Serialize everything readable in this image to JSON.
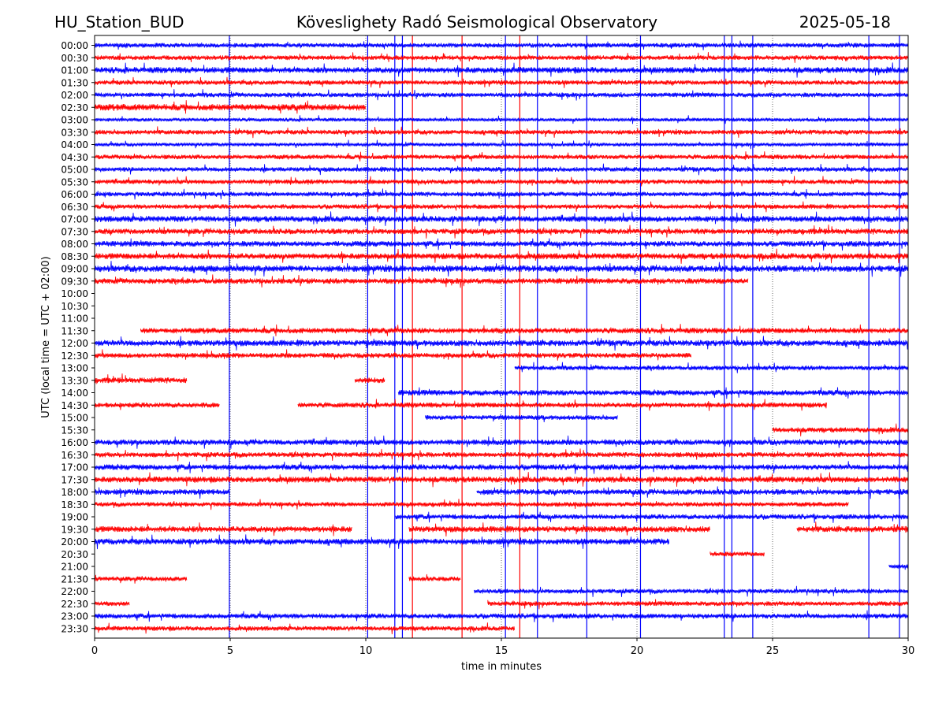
{
  "header": {
    "station": "HU_Station_BUD",
    "title": "Köveslighety Radó Seismological Observatory",
    "date": "2025-05-18"
  },
  "chart_data": {
    "type": "line",
    "subtype": "helicorder",
    "xlabel": "time in minutes",
    "ylabel": "UTC (local time = UTC + 02:00)",
    "xlim": [
      0,
      30
    ],
    "xticks": [
      0,
      5,
      10,
      15,
      20,
      25,
      30
    ],
    "vertical_dotted_gridlines_at_minutes": [
      5,
      10,
      15,
      20,
      25
    ],
    "colors": {
      "blue": "#0000ff",
      "red": "#ff0000"
    },
    "rows": [
      {
        "label": "00:00",
        "color": "blue",
        "segments": [
          [
            0,
            30
          ]
        ],
        "noise": 1.0
      },
      {
        "label": "00:30",
        "color": "red",
        "segments": [
          [
            0,
            30
          ]
        ],
        "noise": 1.0
      },
      {
        "label": "01:00",
        "color": "blue",
        "segments": [
          [
            0,
            30
          ]
        ],
        "noise": 1.3
      },
      {
        "label": "01:30",
        "color": "red",
        "segments": [
          [
            0,
            30
          ]
        ],
        "noise": 1.0
      },
      {
        "label": "02:00",
        "color": "blue",
        "segments": [
          [
            0,
            30
          ]
        ],
        "noise": 1.0
      },
      {
        "label": "02:30",
        "color": "red",
        "segments": [
          [
            0,
            10
          ]
        ],
        "noise": 1.4
      },
      {
        "label": "03:00",
        "color": "blue",
        "segments": [
          [
            0,
            30
          ]
        ],
        "noise": 0.8
      },
      {
        "label": "03:30",
        "color": "red",
        "segments": [
          [
            0,
            30
          ]
        ],
        "noise": 1.0
      },
      {
        "label": "04:00",
        "color": "blue",
        "segments": [
          [
            0,
            30
          ]
        ],
        "noise": 0.8
      },
      {
        "label": "04:30",
        "color": "red",
        "segments": [
          [
            0,
            30
          ]
        ],
        "noise": 1.0
      },
      {
        "label": "05:00",
        "color": "blue",
        "segments": [
          [
            0,
            30
          ]
        ],
        "noise": 1.0
      },
      {
        "label": "05:30",
        "color": "red",
        "segments": [
          [
            0,
            30
          ]
        ],
        "noise": 1.0
      },
      {
        "label": "06:00",
        "color": "blue",
        "segments": [
          [
            0,
            30
          ]
        ],
        "noise": 1.0
      },
      {
        "label": "06:30",
        "color": "red",
        "segments": [
          [
            0,
            30
          ]
        ],
        "noise": 1.0
      },
      {
        "label": "07:00",
        "color": "blue",
        "segments": [
          [
            0,
            30
          ]
        ],
        "noise": 1.3
      },
      {
        "label": "07:30",
        "color": "red",
        "segments": [
          [
            0,
            30
          ]
        ],
        "noise": 1.2
      },
      {
        "label": "08:00",
        "color": "blue",
        "segments": [
          [
            0,
            30
          ]
        ],
        "noise": 1.2
      },
      {
        "label": "08:30",
        "color": "red",
        "segments": [
          [
            0,
            30
          ]
        ],
        "noise": 1.3
      },
      {
        "label": "09:00",
        "color": "blue",
        "segments": [
          [
            0,
            30
          ]
        ],
        "noise": 1.4
      },
      {
        "label": "09:30",
        "color": "red",
        "segments": [
          [
            0,
            24.1
          ]
        ],
        "noise": 1.2
      },
      {
        "label": "10:00",
        "color": "blue",
        "segments": [],
        "noise": 0
      },
      {
        "label": "10:30",
        "color": "red",
        "segments": [],
        "noise": 0
      },
      {
        "label": "11:00",
        "color": "blue",
        "segments": [],
        "noise": 0
      },
      {
        "label": "11:30",
        "color": "red",
        "segments": [
          [
            1.7,
            30
          ]
        ],
        "noise": 1.2
      },
      {
        "label": "12:00",
        "color": "blue",
        "segments": [
          [
            0,
            30
          ]
        ],
        "noise": 1.3
      },
      {
        "label": "12:30",
        "color": "red",
        "segments": [
          [
            0,
            22
          ]
        ],
        "noise": 1.1
      },
      {
        "label": "13:00",
        "color": "blue",
        "segments": [
          [
            15.5,
            30
          ]
        ],
        "noise": 1.0
      },
      {
        "label": "13:30",
        "color": "red",
        "segments": [
          [
            0,
            3.4
          ],
          [
            9.6,
            10.7
          ]
        ],
        "noise": 1.2
      },
      {
        "label": "14:00",
        "color": "blue",
        "segments": [
          [
            11.2,
            30
          ]
        ],
        "noise": 1.2
      },
      {
        "label": "14:30",
        "color": "red",
        "segments": [
          [
            0,
            4.6
          ],
          [
            7.5,
            27
          ]
        ],
        "noise": 1.1
      },
      {
        "label": "15:00",
        "color": "blue",
        "segments": [
          [
            12.2,
            19.3
          ]
        ],
        "noise": 1.0
      },
      {
        "label": "15:30",
        "color": "red",
        "segments": [
          [
            25,
            30
          ]
        ],
        "noise": 1.1
      },
      {
        "label": "16:00",
        "color": "blue",
        "segments": [
          [
            0,
            30
          ]
        ],
        "noise": 1.2
      },
      {
        "label": "16:30",
        "color": "red",
        "segments": [
          [
            0,
            30
          ]
        ],
        "noise": 1.1
      },
      {
        "label": "17:00",
        "color": "blue",
        "segments": [
          [
            0,
            30
          ]
        ],
        "noise": 1.2
      },
      {
        "label": "17:30",
        "color": "red",
        "segments": [
          [
            0,
            30
          ]
        ],
        "noise": 1.3
      },
      {
        "label": "18:00",
        "color": "blue",
        "segments": [
          [
            0,
            5
          ],
          [
            14.1,
            30
          ]
        ],
        "noise": 1.2
      },
      {
        "label": "18:30",
        "color": "red",
        "segments": [
          [
            0,
            27.8
          ]
        ],
        "noise": 1.0
      },
      {
        "label": "19:00",
        "color": "blue",
        "segments": [
          [
            11.1,
            30
          ]
        ],
        "noise": 1.1
      },
      {
        "label": "19:30",
        "color": "red",
        "segments": [
          [
            0,
            9.5
          ],
          [
            11.6,
            22.7
          ],
          [
            25.9,
            30
          ]
        ],
        "noise": 1.3
      },
      {
        "label": "20:00",
        "color": "blue",
        "segments": [
          [
            0,
            21.2
          ]
        ],
        "noise": 1.3
      },
      {
        "label": "20:30",
        "color": "red",
        "segments": [
          [
            22.7,
            24.7
          ]
        ],
        "noise": 1.0
      },
      {
        "label": "21:00",
        "color": "blue",
        "segments": [
          [
            29.3,
            30
          ]
        ],
        "noise": 1.0
      },
      {
        "label": "21:30",
        "color": "red",
        "segments": [
          [
            0,
            3.4
          ],
          [
            11.6,
            13.5
          ]
        ],
        "noise": 1.0
      },
      {
        "label": "22:00",
        "color": "blue",
        "segments": [
          [
            14,
            30
          ]
        ],
        "noise": 1.0
      },
      {
        "label": "22:30",
        "color": "red",
        "segments": [
          [
            0,
            1.3
          ],
          [
            14.5,
            30
          ]
        ],
        "noise": 1.0
      },
      {
        "label": "23:00",
        "color": "blue",
        "segments": [
          [
            0,
            30
          ]
        ],
        "noise": 1.1
      },
      {
        "label": "23:30",
        "color": "red",
        "segments": [
          [
            0,
            15.5
          ]
        ],
        "noise": 1.0
      }
    ],
    "spikes": [
      {
        "minute": 4.97,
        "color": "blue",
        "from": "00:00",
        "to": "23:30"
      },
      {
        "minute": 10.07,
        "color": "blue",
        "from": "00:00",
        "to": "23:30"
      },
      {
        "minute": 11.07,
        "color": "blue",
        "from": "00:00",
        "to": "23:30"
      },
      {
        "minute": 11.35,
        "color": "blue",
        "from": "00:00",
        "to": "23:30"
      },
      {
        "minute": 11.72,
        "color": "red",
        "from": "00:00",
        "to": "23:30"
      },
      {
        "minute": 13.55,
        "color": "red",
        "from": "00:00",
        "to": "23:30"
      },
      {
        "minute": 15.15,
        "color": "blue",
        "from": "00:00",
        "to": "23:30"
      },
      {
        "minute": 15.68,
        "color": "red",
        "from": "00:00",
        "to": "23:30"
      },
      {
        "minute": 16.33,
        "color": "blue",
        "from": "00:00",
        "to": "23:30"
      },
      {
        "minute": 18.15,
        "color": "blue",
        "from": "00:00",
        "to": "23:30"
      },
      {
        "minute": 20.13,
        "color": "blue",
        "from": "00:00",
        "to": "23:30"
      },
      {
        "minute": 23.22,
        "color": "blue",
        "from": "00:00",
        "to": "23:30"
      },
      {
        "minute": 23.5,
        "color": "blue",
        "from": "00:00",
        "to": "23:30"
      },
      {
        "minute": 24.27,
        "color": "blue",
        "from": "00:00",
        "to": "23:30"
      },
      {
        "minute": 28.55,
        "color": "blue",
        "from": "00:00",
        "to": "23:30"
      },
      {
        "minute": 29.68,
        "color": "blue",
        "from": "00:00",
        "to": "23:30"
      }
    ]
  }
}
